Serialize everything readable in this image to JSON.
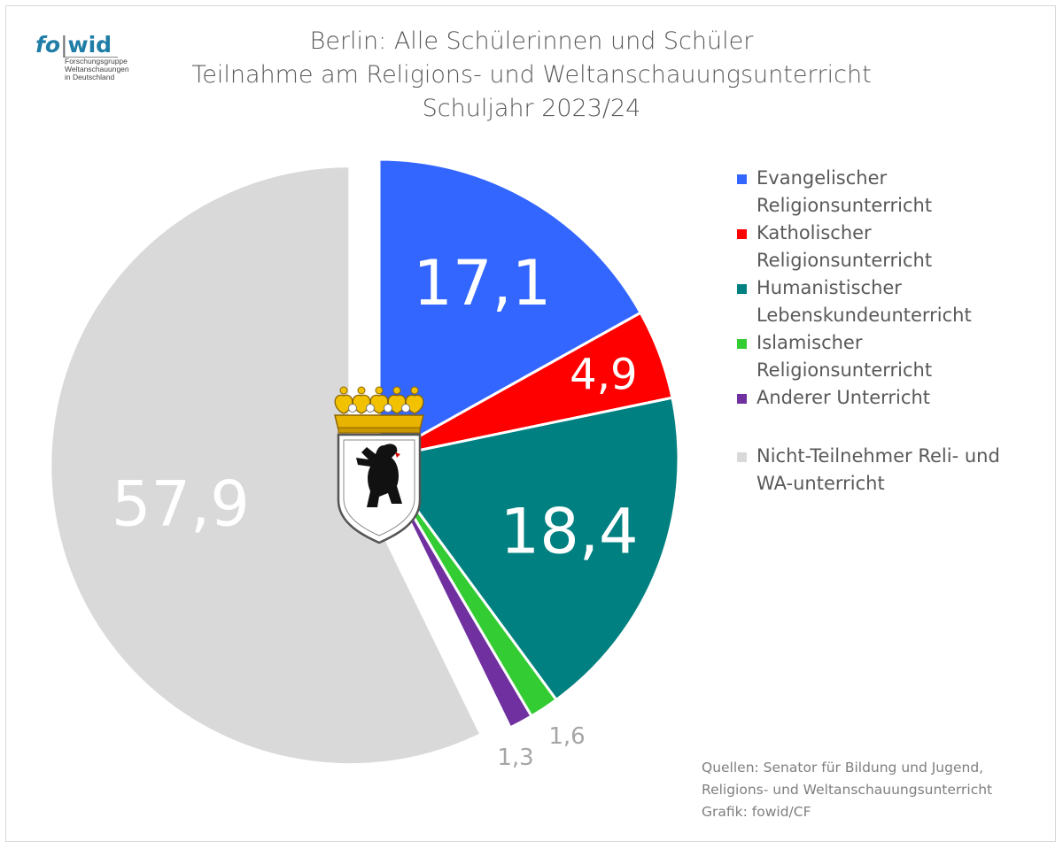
{
  "logo": {
    "fo": "fo",
    "sep": "|",
    "wid": "wid",
    "lines": [
      "Forschungsgruppe",
      "Weltanschauungen",
      "in Deutschland"
    ]
  },
  "title": [
    "Berlin: Alle Schülerinnen und Schüler",
    "Teilnahme am Religions- und Weltanschauungsunterricht",
    "Schuljahr 2023/24"
  ],
  "source": [
    "Quellen: Senator für Bildung und Jugend,",
    "Religions- und Weltanschauungsunterricht",
    "Grafik: fowid/CF"
  ],
  "emblem": "berlin-coat-of-arms",
  "chart_data": {
    "type": "pie",
    "title": "Berlin: Alle Schülerinnen und Schüler — Teilnahme am Religions- und Weltanschauungsunterricht — Schuljahr 2023/24",
    "legend_position": "right",
    "slices": [
      {
        "label": [
          "Evangelischer",
          "Religionsunterricht"
        ],
        "value": 17.1,
        "value_label": "17,1",
        "color": "#3366ff"
      },
      {
        "label": [
          "Katholischer",
          "Religionsunterricht"
        ],
        "value": 4.9,
        "value_label": "4,9",
        "color": "#ff0000"
      },
      {
        "label": [
          "Humanistischer",
          "Lebenskundeunterricht"
        ],
        "value": 18.4,
        "value_label": "18,4",
        "color": "#008080"
      },
      {
        "label": [
          "Islamischer",
          "Religionsunterricht"
        ],
        "value": 1.6,
        "value_label": "1,6",
        "color": "#33cc33"
      },
      {
        "label": [
          "Anderer Unterricht"
        ],
        "value": 1.3,
        "value_label": "1,3",
        "color": "#7030a0"
      },
      {
        "label": [
          "Nicht-Teilnehmer Reli- und",
          "WA-unterricht"
        ],
        "value": 57.9,
        "value_label": "57,9",
        "color": "#d9d9d9",
        "exploded": true
      }
    ]
  }
}
